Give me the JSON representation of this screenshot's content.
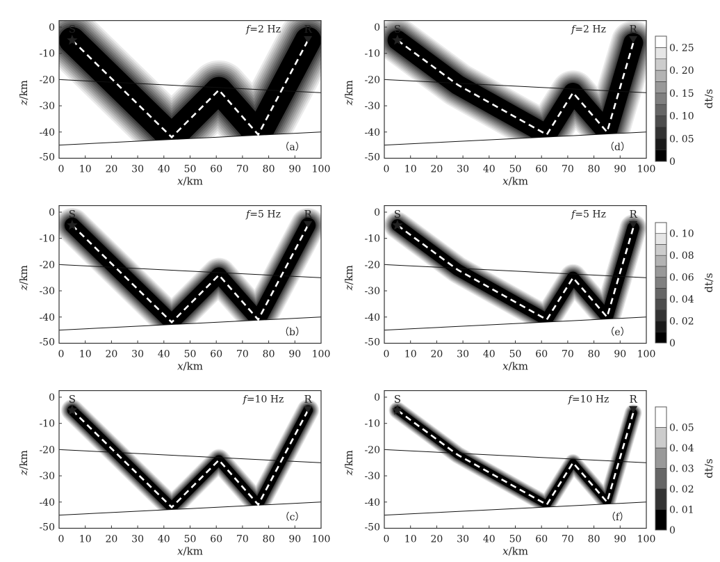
{
  "colors": {
    "frame": "#333333",
    "ray": "#ffffff",
    "interface": "#111111",
    "kernel_core": "#000000"
  },
  "axes": {
    "xlabel_var": "x",
    "xlabel_unit": "/km",
    "ylabel_var": "z",
    "ylabel_unit": "/km",
    "xticks": [
      0,
      10,
      20,
      30,
      40,
      50,
      60,
      70,
      80,
      90,
      100
    ],
    "yticks": [
      0,
      -10,
      -20,
      -30,
      -40,
      -50
    ],
    "xlim": [
      0,
      100
    ],
    "ylim": [
      -50,
      2.5
    ]
  },
  "source_label": "S",
  "receiver_label": "R",
  "colorbars": [
    {
      "label": "dt/s",
      "max": 0.275,
      "bands": 11,
      "ticks": [
        0,
        0.05,
        0.1,
        0.15,
        0.2,
        0.25
      ],
      "tick_labels": [
        "0",
        "0. 05",
        "0. 10",
        "0. 15",
        "0. 20",
        "0. 25"
      ]
    },
    {
      "label": "dt/s",
      "max": 0.11,
      "bands": 11,
      "ticks": [
        0,
        0.02,
        0.04,
        0.06,
        0.08,
        0.1
      ],
      "tick_labels": [
        "0",
        "0. 02",
        "0. 04",
        "0. 06",
        "0. 08",
        "0. 10"
      ]
    },
    {
      "label": "dt/s",
      "max": 0.06,
      "bands": 6,
      "ticks": [
        0,
        0.01,
        0.02,
        0.03,
        0.04,
        0.05
      ],
      "tick_labels": [
        "0",
        "0. 01",
        "0. 02",
        "0. 03",
        "0. 04",
        "0. 05"
      ]
    }
  ],
  "chart_data": [
    {
      "type": "heatmap",
      "panel": "（a）",
      "f_symbol": "f",
      "freq_text": "=2 Hz",
      "frequency_hz": 2,
      "kernel_halfwidth_km": 12,
      "source": [
        5,
        -5
      ],
      "receiver": [
        95,
        -5
      ],
      "ray": [
        [
          5,
          -5
        ],
        [
          43,
          -42
        ],
        [
          61,
          -24
        ],
        [
          76,
          -41
        ],
        [
          95,
          -5
        ]
      ],
      "interfaces": [
        [
          [
            0,
            -20
          ],
          [
            100,
            -25
          ]
        ],
        [
          [
            0,
            -45
          ],
          [
            100,
            -40
          ]
        ]
      ]
    },
    {
      "type": "heatmap",
      "panel": "（b）",
      "f_symbol": "f",
      "freq_text": "=5 Hz",
      "frequency_hz": 5,
      "kernel_halfwidth_km": 7,
      "source": [
        5,
        -5
      ],
      "receiver": [
        95,
        -5
      ],
      "ray": [
        [
          5,
          -5
        ],
        [
          43,
          -42
        ],
        [
          61,
          -24
        ],
        [
          76,
          -41
        ],
        [
          95,
          -5
        ]
      ],
      "interfaces": [
        [
          [
            0,
            -20
          ],
          [
            100,
            -25
          ]
        ],
        [
          [
            0,
            -45
          ],
          [
            100,
            -40
          ]
        ]
      ]
    },
    {
      "type": "heatmap",
      "panel": "（c）",
      "f_symbol": "f",
      "freq_text": "=10 Hz",
      "frequency_hz": 10,
      "kernel_halfwidth_km": 4.5,
      "source": [
        5,
        -5
      ],
      "receiver": [
        95,
        -5
      ],
      "ray": [
        [
          5,
          -5
        ],
        [
          43,
          -42
        ],
        [
          61,
          -24
        ],
        [
          76,
          -41
        ],
        [
          95,
          -5
        ]
      ],
      "interfaces": [
        [
          [
            0,
            -20
          ],
          [
            100,
            -25
          ]
        ],
        [
          [
            0,
            -45
          ],
          [
            100,
            -40
          ]
        ]
      ]
    },
    {
      "type": "heatmap",
      "panel": "（d）",
      "f_symbol": "f",
      "freq_text": "=2 Hz",
      "frequency_hz": 2,
      "kernel_halfwidth_km": 9,
      "source": [
        5,
        -5
      ],
      "receiver": [
        95,
        -5
      ],
      "ray": [
        [
          5,
          -5
        ],
        [
          28,
          -22
        ],
        [
          62,
          -41
        ],
        [
          72,
          -25
        ],
        [
          85,
          -40
        ],
        [
          95,
          -6
        ]
      ],
      "interfaces": [
        [
          [
            0,
            -20
          ],
          [
            100,
            -25
          ]
        ],
        [
          [
            0,
            -45
          ],
          [
            100,
            -40
          ]
        ]
      ]
    },
    {
      "type": "heatmap",
      "panel": "（e）",
      "f_symbol": "f",
      "freq_text": "=5 Hz",
      "frequency_hz": 5,
      "kernel_halfwidth_km": 5.5,
      "source": [
        5,
        -5
      ],
      "receiver": [
        95,
        -5
      ],
      "ray": [
        [
          5,
          -5
        ],
        [
          28,
          -22
        ],
        [
          62,
          -41
        ],
        [
          72,
          -25
        ],
        [
          85,
          -40
        ],
        [
          95,
          -6
        ]
      ],
      "interfaces": [
        [
          [
            0,
            -20
          ],
          [
            100,
            -25
          ]
        ],
        [
          [
            0,
            -45
          ],
          [
            100,
            -40
          ]
        ]
      ]
    },
    {
      "type": "heatmap",
      "panel": "（f）",
      "f_symbol": "f",
      "freq_text": "=10 Hz",
      "frequency_hz": 10,
      "kernel_halfwidth_km": 3.5,
      "source": [
        5,
        -5
      ],
      "receiver": [
        95,
        -5
      ],
      "ray": [
        [
          5,
          -5
        ],
        [
          28,
          -22
        ],
        [
          62,
          -41
        ],
        [
          72,
          -25
        ],
        [
          85,
          -40
        ],
        [
          95,
          -6
        ]
      ],
      "interfaces": [
        [
          [
            0,
            -20
          ],
          [
            100,
            -25
          ]
        ],
        [
          [
            0,
            -45
          ],
          [
            100,
            -40
          ]
        ]
      ]
    }
  ]
}
